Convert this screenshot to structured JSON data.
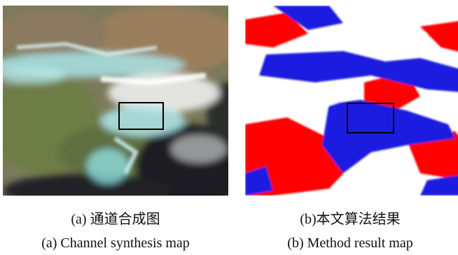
{
  "figure": {
    "panel_a": {
      "caption_zh": "(a)  通道合成图",
      "caption_en": "(a) Channel synthesis map"
    },
    "panel_b": {
      "caption_zh": "(b)本文算法结果",
      "caption_en": "(b) Method result map"
    },
    "colors": {
      "land_green": "#6f7f4e",
      "land_brown": "#8f7656",
      "cloud_cyan": "#9fe6ea",
      "cloud_white": "#f4f4f4",
      "sea_dark": "#1c1f22",
      "class_red": "#ff0000",
      "class_blue": "#1f1fe0",
      "class_white": "#ffffff",
      "box_outline": "#000000"
    }
  }
}
